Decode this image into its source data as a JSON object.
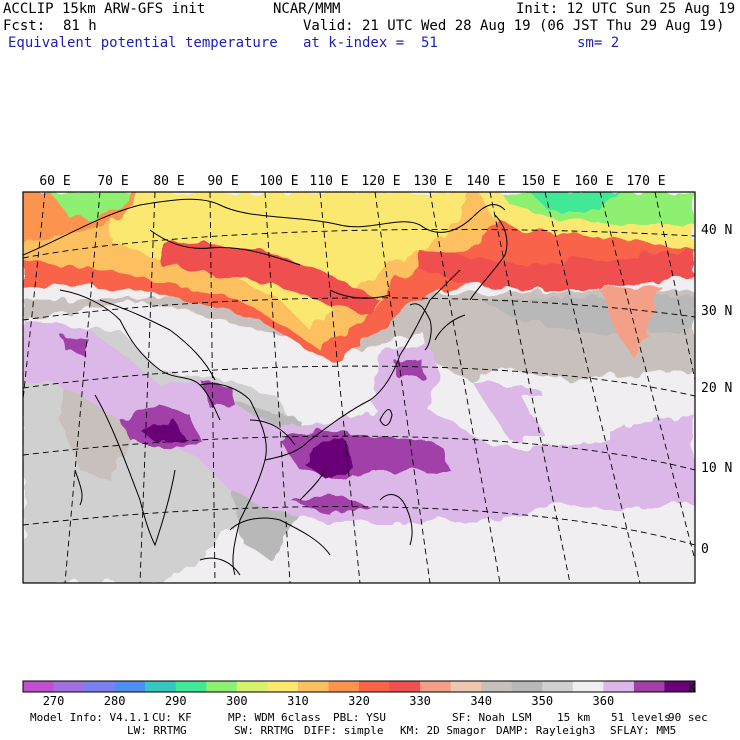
{
  "header": {
    "model": "ACCLIP 15km ARW-GFS init",
    "center": "NCAR/MMM",
    "init": "Init: 12 UTC Sun 25 Aug 19",
    "fcst_label": "Fcst:",
    "fcst_value": "81 h",
    "valid": "Valid: 21 UTC Wed 28 Aug 19 (06 JST Thu 29 Aug 19)",
    "field": "Equivalent potential temperature",
    "level": "at k-index =  51",
    "smoothing": "sm= 2",
    "field_color": "#1d1db8"
  },
  "map": {
    "longitude_labels": [
      "60 E",
      "70 E",
      "80 E",
      "90 E",
      "100 E",
      "110 E",
      "120 E",
      "130 E",
      "140 E",
      "150 E",
      "160 E",
      "170 E"
    ],
    "latitude_labels": [
      "40 N",
      "30 N",
      "20 N",
      "10 N",
      "0"
    ],
    "features": {
      "typhoon_center": "South China Sea near 110 E 10 N",
      "high_theta_e_band": "Northern China / Mongolia / north Pacific 30-45 N"
    }
  },
  "colorbar": {
    "unit": "K",
    "tick_labels": [
      "270",
      "280",
      "290",
      "300",
      "310",
      "320",
      "330",
      "340",
      "350",
      "360"
    ],
    "colors": [
      "#c050d0",
      "#a070e0",
      "#7c80ee",
      "#4f8ff0",
      "#36c8c0",
      "#40e898",
      "#8ef070",
      "#d8f070",
      "#fae870",
      "#fcc060",
      "#fc9450",
      "#f86448",
      "#f05050",
      "#f4a088",
      "#f0c8b0",
      "#c8c0bc",
      "#b8b8b8",
      "#d0d0d0",
      "#f0eef0",
      "#dcb8e8",
      "#a040a8",
      "#6a0078"
    ]
  },
  "footer": {
    "line1": {
      "model_info": "Model Info: V4.1.1",
      "cu": "CU: KF",
      "mp": "MP: WDM 6class",
      "pbl": "PBL: YSU",
      "sf": "SF: Noah LSM",
      "res": "15 km",
      "levels": "51 levels",
      "dt": "90 sec"
    },
    "line2": {
      "lw": "LW: RRTMG",
      "sw": "SW: RRTMG",
      "diff": "DIFF: simple",
      "km": "KM: 2D Smagor",
      "damp": "DAMP: Rayleigh3",
      "sflay": "SFLAY: MM5"
    }
  }
}
